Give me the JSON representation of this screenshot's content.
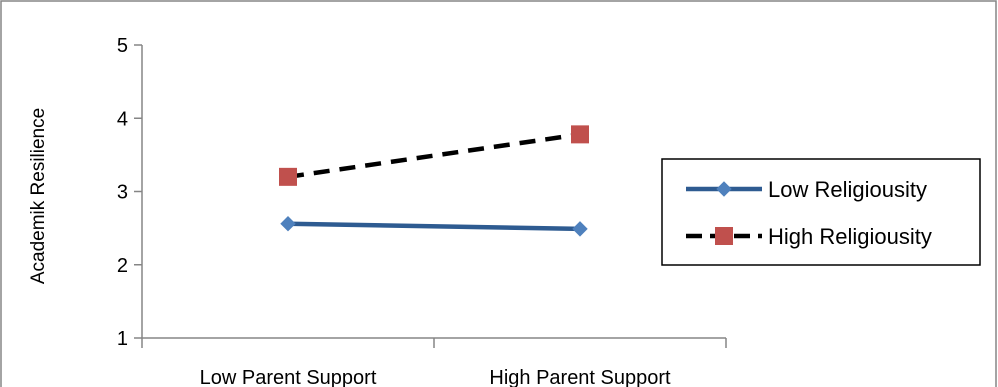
{
  "chart_data": {
    "type": "line",
    "title": "",
    "xlabel": "",
    "ylabel": "Academik Resilience",
    "categories": [
      "Low Parent Support",
      "High Parent Support"
    ],
    "ylim": [
      1,
      5
    ],
    "yticks": [
      "1",
      "2",
      "3",
      "4",
      "5"
    ],
    "grid": false,
    "legend_position": "right",
    "series": [
      {
        "name": "Low Religiousity",
        "values": [
          2.56,
          2.49
        ],
        "color": "#2e5b91",
        "marker": "diamond",
        "marker_color": "#4f81bd",
        "line_style": "solid"
      },
      {
        "name": "High Religiousity",
        "values": [
          3.2,
          3.78
        ],
        "color": "#000000",
        "marker": "square",
        "marker_color": "#c0504d",
        "line_style": "dashed"
      }
    ]
  }
}
